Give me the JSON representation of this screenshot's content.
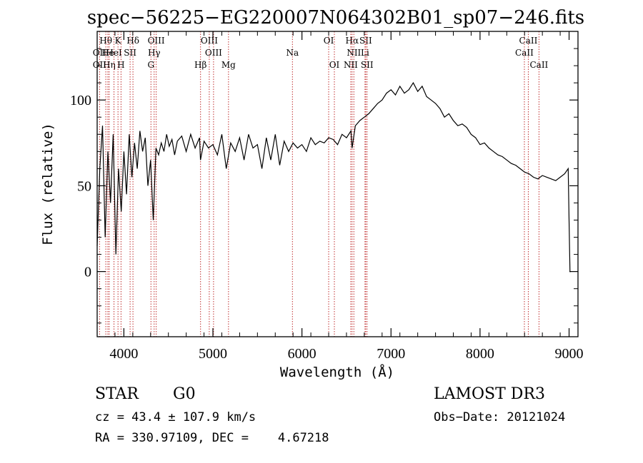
{
  "chart_data": {
    "type": "line",
    "title": "spec−56225−EG220007N064302B01_sp07−246.fits",
    "xlabel": "Wavelength (Å)",
    "ylabel": "Flux (relative)",
    "xlim": [
      3700,
      9100
    ],
    "ylim": [
      -38,
      140
    ],
    "xticks": [
      "4000",
      "5000",
      "6000",
      "7000",
      "8000",
      "9000"
    ],
    "xtick_values": [
      4000,
      5000,
      6000,
      7000,
      8000,
      9000
    ],
    "yticks": [
      "0",
      "50",
      "100"
    ],
    "ytick_values": [
      0,
      50,
      100
    ],
    "series": [
      {
        "name": "spectrum",
        "x": [
          3700,
          3730,
          3760,
          3790,
          3820,
          3850,
          3880,
          3910,
          3940,
          3970,
          4000,
          4030,
          4060,
          4090,
          4120,
          4150,
          4180,
          4210,
          4240,
          4270,
          4300,
          4330,
          4360,
          4390,
          4420,
          4450,
          4480,
          4510,
          4540,
          4570,
          4600,
          4650,
          4700,
          4750,
          4800,
          4850,
          4860,
          4900,
          4950,
          5000,
          5050,
          5100,
          5150,
          5200,
          5250,
          5300,
          5350,
          5400,
          5450,
          5500,
          5550,
          5600,
          5650,
          5700,
          5750,
          5800,
          5850,
          5900,
          5950,
          6000,
          6050,
          6100,
          6150,
          6200,
          6250,
          6300,
          6350,
          6400,
          6450,
          6500,
          6550,
          6563,
          6600,
          6650,
          6700,
          6750,
          6800,
          6850,
          6900,
          6950,
          7000,
          7050,
          7100,
          7150,
          7200,
          7250,
          7300,
          7350,
          7400,
          7450,
          7500,
          7550,
          7600,
          7650,
          7700,
          7750,
          7800,
          7850,
          7900,
          7950,
          8000,
          8050,
          8100,
          8150,
          8200,
          8250,
          8300,
          8350,
          8400,
          8450,
          8500,
          8550,
          8600,
          8650,
          8700,
          8750,
          8800,
          8850,
          8900,
          8950,
          8990,
          9000,
          9010,
          9020
        ],
        "y": [
          15,
          60,
          85,
          20,
          70,
          40,
          80,
          10,
          60,
          35,
          70,
          45,
          80,
          55,
          75,
          60,
          82,
          70,
          78,
          50,
          65,
          30,
          72,
          68,
          75,
          70,
          80,
          73,
          77,
          68,
          76,
          79,
          70,
          80,
          72,
          78,
          65,
          76,
          72,
          74,
          68,
          80,
          60,
          75,
          70,
          78,
          65,
          80,
          72,
          74,
          60,
          78,
          65,
          80,
          62,
          76,
          70,
          75,
          72,
          74,
          70,
          78,
          74,
          76,
          75,
          78,
          77,
          74,
          80,
          78,
          82,
          72,
          85,
          88,
          90,
          92,
          95,
          98,
          100,
          104,
          106,
          103,
          108,
          104,
          106,
          110,
          105,
          108,
          102,
          100,
          98,
          95,
          90,
          92,
          88,
          85,
          86,
          84,
          80,
          78,
          74,
          75,
          72,
          70,
          68,
          67,
          65,
          63,
          62,
          60,
          58,
          57,
          55,
          54,
          56,
          55,
          54,
          53,
          55,
          57,
          60,
          30,
          0,
          0
        ]
      }
    ],
    "spectral_lines": [
      {
        "name": "Hθ",
        "wavelength": 3797,
        "row": 0
      },
      {
        "name": "OII",
        "wavelength": 3727,
        "row": 1
      },
      {
        "name": "OII",
        "wavelength": 3727,
        "row": 2
      },
      {
        "name": "He",
        "wavelength": 3820,
        "row": 1
      },
      {
        "name": "Hη",
        "wavelength": 3835,
        "row": 2
      },
      {
        "name": "K",
        "wavelength": 3934,
        "row": 0
      },
      {
        "name": "HeI",
        "wavelength": 3889,
        "row": 1
      },
      {
        "name": "H",
        "wavelength": 3968,
        "row": 2
      },
      {
        "name": "SII",
        "wavelength": 4070,
        "row": 1
      },
      {
        "name": "Hδ",
        "wavelength": 4102,
        "row": 0
      },
      {
        "name": "OIII",
        "wavelength": 4363,
        "row": 0
      },
      {
        "name": "Hγ",
        "wavelength": 4340,
        "row": 1
      },
      {
        "name": "G",
        "wavelength": 4304,
        "row": 2
      },
      {
        "name": "Hβ",
        "wavelength": 4861,
        "row": 2
      },
      {
        "name": "OIII",
        "wavelength": 4959,
        "row": 0
      },
      {
        "name": "OIII",
        "wavelength": 5007,
        "row": 1
      },
      {
        "name": "Mg",
        "wavelength": 5175,
        "row": 2
      },
      {
        "name": "Na",
        "wavelength": 5893,
        "row": 1
      },
      {
        "name": "OI",
        "wavelength": 6300,
        "row": 0
      },
      {
        "name": "OI",
        "wavelength": 6364,
        "row": 2
      },
      {
        "name": "Hα",
        "wavelength": 6563,
        "row": 0
      },
      {
        "name": "NII",
        "wavelength": 6583,
        "row": 1
      },
      {
        "name": "NII",
        "wavelength": 6548,
        "row": 2
      },
      {
        "name": "SII",
        "wavelength": 6716,
        "row": 0
      },
      {
        "name": "Li",
        "wavelength": 6708,
        "row": 1
      },
      {
        "name": "SII",
        "wavelength": 6731,
        "row": 2
      },
      {
        "name": "CaII",
        "wavelength": 8542,
        "row": 0
      },
      {
        "name": "CaII",
        "wavelength": 8498,
        "row": 1
      },
      {
        "name": "CaII",
        "wavelength": 8662,
        "row": 2
      }
    ],
    "line_color": "#c03030",
    "spectrum_color": "#000000"
  },
  "info": {
    "object_class": "STAR",
    "subclass": "G0",
    "survey": "LAMOST DR3",
    "cz": "cz = 43.4 ± 107.9 km/s",
    "obs_date": "Obs−Date: 20121024",
    "coords": "RA = 330.97109, DEC =    4.67218"
  }
}
